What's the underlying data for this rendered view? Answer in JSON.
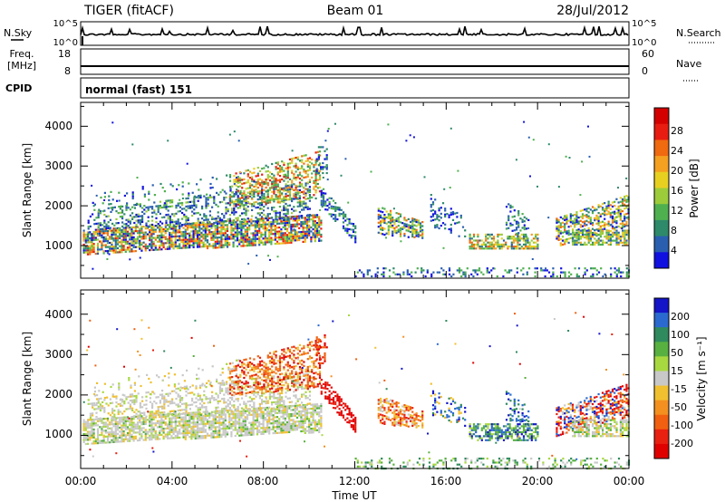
{
  "header": {
    "radar": "TIGER (fitACF)",
    "beam": "Beam 01",
    "date": "28/Jul/2012"
  },
  "strips": {
    "sky_label": "N.Sky",
    "search_label": "N.Search",
    "sky_ticks": [
      "10^5",
      "10^0"
    ],
    "search_ticks": [
      "10^5",
      "10^0"
    ],
    "freq_label": "Freq.",
    "freq_unit": "[MHz]",
    "freq_ticks": [
      "18",
      "8"
    ],
    "nave_label": "Nave",
    "nave_ticks": [
      "60",
      "0"
    ],
    "cpid_label": "CPID",
    "cpid_value": "normal (fast) 151"
  },
  "axes": {
    "xlabel": "Time UT",
    "ylabel": "Slant Range [km]",
    "xticks": [
      "00:00",
      "04:00",
      "08:00",
      "12:00",
      "16:00",
      "20:00",
      "00:00"
    ],
    "yticks": [
      "1000",
      "2000",
      "3000",
      "4000"
    ]
  },
  "power_scale": {
    "label": "Power [dB]",
    "ticks": [
      "4",
      "8",
      "12",
      "16",
      "20",
      "24",
      "28"
    ],
    "colors": [
      "#1010e0",
      "#2a5fb0",
      "#2e8a6a",
      "#4fb04f",
      "#9ccc3a",
      "#e8d020",
      "#f4a020",
      "#f06a10",
      "#e81c10",
      "#d40000"
    ]
  },
  "velocity_scale": {
    "label": "Velocity [m s⁻¹]",
    "ticks": [
      "200",
      "100",
      "50",
      "15",
      "-15",
      "-50",
      "-100",
      "-200"
    ],
    "colors": [
      "#1414c8",
      "#2a6ad0",
      "#2f8a5e",
      "#58b040",
      "#a8d840",
      "#c8c8c8",
      "#f0c030",
      "#f49020",
      "#f06010",
      "#e82010",
      "#e00000"
    ]
  },
  "chart_data": {
    "type": "heatmap",
    "x_range_hours": [
      0,
      24
    ],
    "y_range_km": [
      180,
      4600
    ],
    "panels": [
      {
        "name": "power",
        "colorbar_range_db": [
          0,
          32
        ]
      },
      {
        "name": "velocity",
        "colorbar_range_ms": [
          -250,
          250
        ]
      }
    ],
    "echo_regions": [
      {
        "start_h": 0.0,
        "end_h": 10.5,
        "range_lo_km": 800,
        "range_hi_km": 1800,
        "power": "10-24 dB",
        "velocity": "-15 to 15"
      },
      {
        "start_h": 6.5,
        "end_h": 10.5,
        "range_lo_km": 2000,
        "range_hi_km": 3400,
        "power": "12-24 dB",
        "velocity": "-100 to -200"
      },
      {
        "start_h": 10.6,
        "end_h": 12.0,
        "range_lo_km": 1200,
        "range_hi_km": 2200,
        "power": "8-16 dB",
        "velocity": "-200"
      },
      {
        "start_h": 13.0,
        "end_h": 15.0,
        "range_lo_km": 1200,
        "range_hi_km": 1800,
        "power": "8-20 dB",
        "velocity": "-50 to -100"
      },
      {
        "start_h": 17.0,
        "end_h": 20.0,
        "range_lo_km": 900,
        "range_hi_km": 1400,
        "power": "12-24 dB",
        "velocity": "15 to 50"
      },
      {
        "start_h": 21.0,
        "end_h": 24.0,
        "range_lo_km": 1000,
        "range_hi_km": 2400,
        "power": "12-24 dB",
        "velocity": "-200 to 200"
      },
      {
        "start_h": 12.0,
        "end_h": 24.0,
        "range_lo_km": 200,
        "range_hi_km": 500,
        "power": "4-12 dB",
        "velocity": "15"
      }
    ]
  }
}
